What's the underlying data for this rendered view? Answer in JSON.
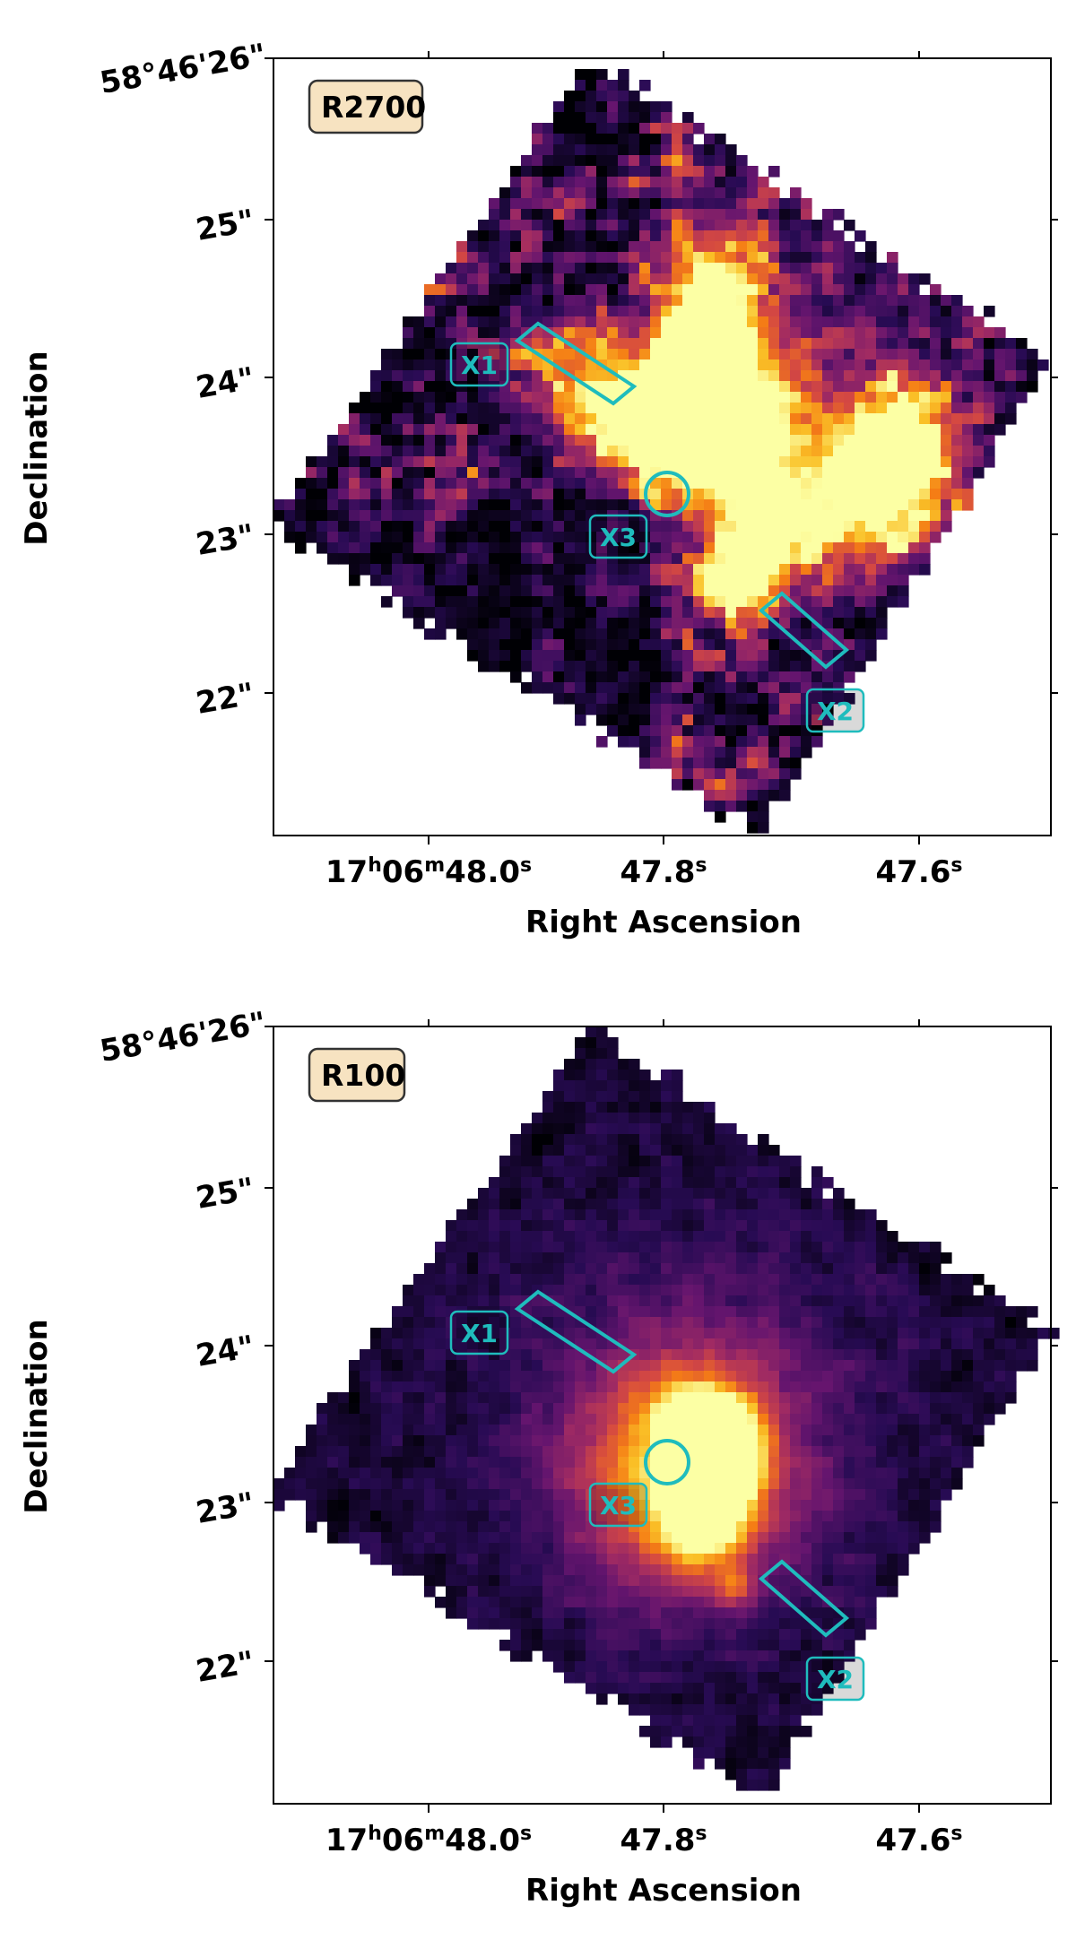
{
  "panels": [
    {
      "id": "top",
      "label": "R2700",
      "style": "clumpy",
      "regions": [
        "X1",
        "X2",
        "X3"
      ],
      "xlabel": "Right Ascension",
      "ylabel": "Declination",
      "dec_top": "58°46'26\"",
      "dec_ticks": [
        "25\"",
        "24\"",
        "23\"",
        "22\""
      ],
      "ra_ticks": [
        {
          "base": "17",
          "h": "h",
          "mid": "06",
          "m": "m",
          "val": "48.0",
          "s": "s"
        },
        {
          "base": "",
          "h": "",
          "mid": "",
          "m": "",
          "val": "47.8",
          "s": "s"
        },
        {
          "base": "",
          "h": "",
          "mid": "",
          "m": "",
          "val": "47.6",
          "s": "s"
        }
      ]
    },
    {
      "id": "bottom",
      "label": "R100",
      "style": "smooth",
      "regions": [
        "X1",
        "X2",
        "X3"
      ],
      "xlabel": "Right Ascension",
      "ylabel": "Declination",
      "dec_top": "58°46'26\"",
      "dec_ticks": [
        "25\"",
        "24\"",
        "23\"",
        "22\""
      ],
      "ra_ticks": [
        {
          "base": "17",
          "h": "h",
          "mid": "06",
          "m": "m",
          "val": "48.0",
          "s": "s"
        },
        {
          "base": "",
          "h": "",
          "mid": "",
          "m": "",
          "val": "47.8",
          "s": "s"
        },
        {
          "base": "",
          "h": "",
          "mid": "",
          "m": "",
          "val": "47.6",
          "s": "s"
        }
      ]
    }
  ],
  "colors": {
    "region": "#1fbcbd",
    "label_box_fill": "#f7e3c1",
    "background": "#000004",
    "colormap": "inferno"
  }
}
